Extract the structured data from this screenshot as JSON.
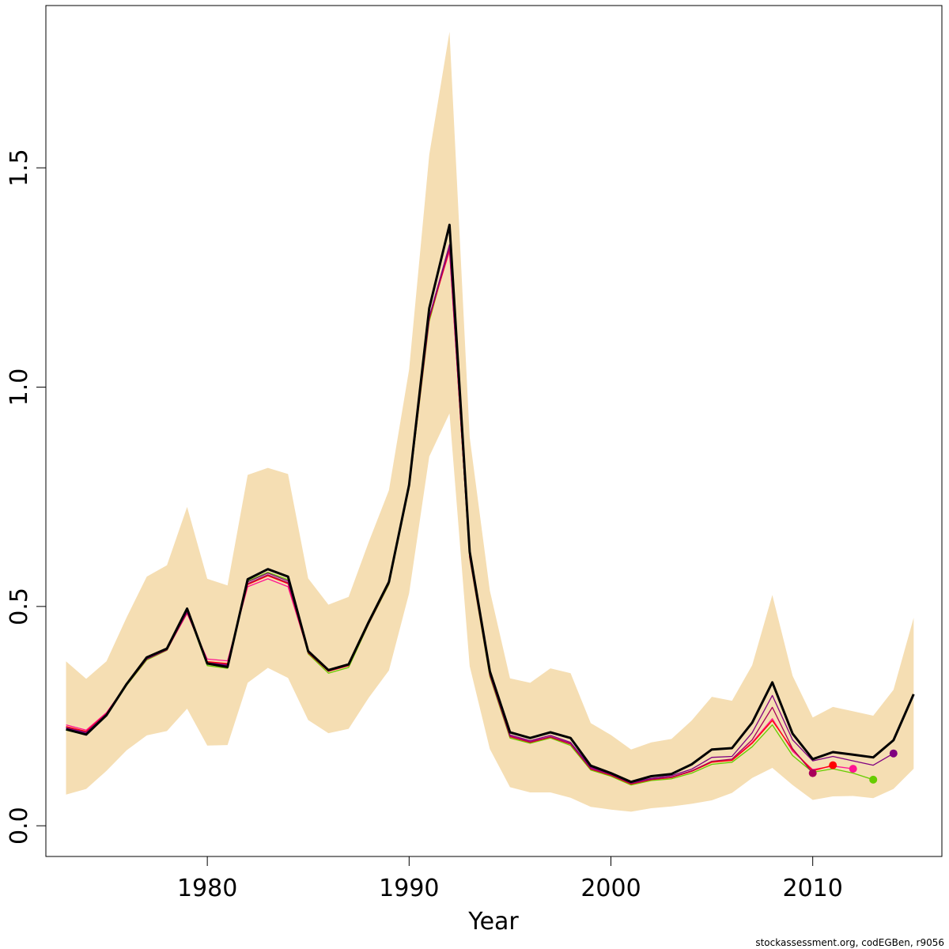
{
  "chart_data": {
    "type": "line",
    "xlabel": "Year",
    "ylabel": "",
    "xlim": [
      1972,
      2016.4
    ],
    "ylim": [
      -0.07,
      1.87
    ],
    "x_ticks": [
      1980,
      1990,
      2000,
      2010
    ],
    "x_tick_labels": [
      "1980",
      "1990",
      "2000",
      "2010"
    ],
    "y_ticks": [
      0.0,
      0.5,
      1.0,
      1.5
    ],
    "y_tick_labels": [
      "0.0",
      "0.5",
      "1.0",
      "1.5"
    ],
    "grid": false,
    "legend": "none",
    "band": {
      "color": "#f5deb3",
      "x": [
        1973,
        1974,
        1975,
        1976,
        1977,
        1978,
        1979,
        1980,
        1981,
        1982,
        1983,
        1984,
        1985,
        1986,
        1987,
        1988,
        1989,
        1990,
        1991,
        1992,
        1993,
        1994,
        1995,
        1996,
        1997,
        1998,
        1999,
        2000,
        2001,
        2002,
        2003,
        2004,
        2005,
        2006,
        2007,
        2008,
        2009,
        2010,
        2011,
        2012,
        2013,
        2014,
        2015
      ],
      "upper": [
        0.375,
        0.335,
        0.375,
        0.475,
        0.568,
        0.594,
        0.727,
        0.563,
        0.548,
        0.8,
        0.816,
        0.802,
        0.564,
        0.504,
        0.522,
        0.647,
        0.765,
        1.04,
        1.53,
        1.81,
        0.886,
        0.536,
        0.336,
        0.326,
        0.359,
        0.348,
        0.234,
        0.207,
        0.174,
        0.19,
        0.198,
        0.24,
        0.294,
        0.285,
        0.366,
        0.526,
        0.342,
        0.247,
        0.271,
        0.261,
        0.251,
        0.31,
        0.474
      ],
      "lower": [
        0.071,
        0.084,
        0.125,
        0.172,
        0.206,
        0.216,
        0.267,
        0.183,
        0.184,
        0.326,
        0.36,
        0.337,
        0.241,
        0.211,
        0.221,
        0.292,
        0.354,
        0.53,
        0.842,
        0.94,
        0.364,
        0.175,
        0.088,
        0.076,
        0.076,
        0.064,
        0.043,
        0.037,
        0.032,
        0.04,
        0.044,
        0.05,
        0.058,
        0.075,
        0.109,
        0.132,
        0.093,
        0.059,
        0.067,
        0.068,
        0.063,
        0.084,
        0.13
      ]
    },
    "x": [
      1973,
      1974,
      1975,
      1976,
      1977,
      1978,
      1979,
      1980,
      1981,
      1982,
      1983,
      1984,
      1985,
      1986,
      1987,
      1988,
      1989,
      1990,
      1991,
      1992,
      1993,
      1994,
      1995,
      1996,
      1997,
      1998,
      1999,
      2000,
      2001,
      2002,
      2003,
      2004,
      2005,
      2006,
      2007,
      2008,
      2009,
      2010,
      2011,
      2012,
      2013,
      2014,
      2015
    ],
    "series": [
      {
        "color": "#66cc00",
        "x": [
          1973,
          1974,
          1975,
          1976,
          1977,
          1978,
          1979,
          1980,
          1981,
          1982,
          1983,
          1984,
          1985,
          1986,
          1987,
          1988,
          1989,
          1990,
          1991,
          1992,
          1993,
          1994,
          1995,
          1996,
          1997,
          1998,
          1999,
          2000,
          2001,
          2002,
          2003,
          2004,
          2005,
          2006,
          2007,
          2008,
          2009,
          2010,
          2011,
          2012,
          2013
        ],
        "values": [
          0.218,
          0.207,
          0.25,
          0.32,
          0.378,
          0.4,
          0.49,
          0.365,
          0.359,
          0.558,
          0.578,
          0.561,
          0.392,
          0.348,
          0.361,
          0.46,
          0.55,
          0.77,
          1.15,
          1.32,
          0.61,
          0.34,
          0.2,
          0.188,
          0.2,
          0.183,
          0.127,
          0.113,
          0.093,
          0.103,
          0.107,
          0.12,
          0.14,
          0.145,
          0.18,
          0.23,
          0.16,
          0.122,
          0.13,
          0.12,
          0.105
        ],
        "end_marker": true
      },
      {
        "color": "#ff1493",
        "x": [
          1973,
          1974,
          1975,
          1976,
          1977,
          1978,
          1979,
          1980,
          1981,
          1982,
          1983,
          1984,
          1985,
          1986,
          1987,
          1988,
          1989,
          1990,
          1991,
          1992,
          1993,
          1994,
          1995,
          1996,
          1997,
          1998,
          1999,
          2000,
          2001,
          2002,
          2003,
          2004,
          2005,
          2006,
          2007,
          2008,
          2009,
          2010,
          2011,
          2012
        ],
        "values": [
          0.23,
          0.218,
          0.258,
          0.322,
          0.381,
          0.402,
          0.484,
          0.38,
          0.376,
          0.545,
          0.563,
          0.545,
          0.396,
          0.355,
          0.368,
          0.462,
          0.553,
          0.772,
          1.16,
          1.31,
          0.614,
          0.345,
          0.205,
          0.192,
          0.203,
          0.188,
          0.131,
          0.116,
          0.096,
          0.106,
          0.111,
          0.125,
          0.146,
          0.15,
          0.19,
          0.244,
          0.17,
          0.128,
          0.136,
          0.13
        ],
        "end_marker": true
      },
      {
        "color": "#ff0000",
        "x": [
          1973,
          1974,
          1975,
          1976,
          1977,
          1978,
          1979,
          1980,
          1981,
          1982,
          1983,
          1984,
          1985,
          1986,
          1987,
          1988,
          1989,
          1990,
          1991,
          1992,
          1993,
          1994,
          1995,
          1996,
          1997,
          1998,
          1999,
          2000,
          2001,
          2002,
          2003,
          2004,
          2005,
          2006,
          2007,
          2008,
          2009,
          2010,
          2011
        ],
        "values": [
          0.226,
          0.215,
          0.256,
          0.321,
          0.38,
          0.401,
          0.486,
          0.374,
          0.37,
          0.55,
          0.57,
          0.552,
          0.394,
          0.352,
          0.365,
          0.461,
          0.552,
          0.771,
          1.155,
          1.315,
          0.612,
          0.343,
          0.203,
          0.19,
          0.202,
          0.186,
          0.129,
          0.115,
          0.095,
          0.105,
          0.11,
          0.124,
          0.145,
          0.149,
          0.188,
          0.24,
          0.174,
          0.125,
          0.138
        ],
        "end_marker": true
      },
      {
        "color": "#a8005a",
        "x": [
          1973,
          1974,
          1975,
          1976,
          1977,
          1978,
          1979,
          1980,
          1981,
          1982,
          1983,
          1984,
          1985,
          1986,
          1987,
          1988,
          1989,
          1990,
          1991,
          1992,
          1993,
          1994,
          1995,
          1996,
          1997,
          1998,
          1999,
          2000,
          2001,
          2002,
          2003,
          2004,
          2005,
          2006,
          2007,
          2008,
          2009,
          2010
        ],
        "values": [
          0.224,
          0.213,
          0.255,
          0.321,
          0.38,
          0.401,
          0.487,
          0.372,
          0.368,
          0.552,
          0.572,
          0.554,
          0.395,
          0.353,
          0.366,
          0.461,
          0.552,
          0.772,
          1.158,
          1.318,
          0.613,
          0.344,
          0.204,
          0.191,
          0.203,
          0.187,
          0.13,
          0.116,
          0.096,
          0.106,
          0.111,
          0.125,
          0.147,
          0.152,
          0.196,
          0.27,
          0.176,
          0.12
        ],
        "end_marker": true
      },
      {
        "color": "#800080",
        "x": [
          1973,
          1974,
          1975,
          1976,
          1977,
          1978,
          1979,
          1980,
          1981,
          1982,
          1983,
          1984,
          1985,
          1986,
          1987,
          1988,
          1989,
          1990,
          1991,
          1992,
          1993,
          1994,
          1995,
          1996,
          1997,
          1998,
          1999,
          2000,
          2001,
          2002,
          2003,
          2004,
          2005,
          2006,
          2007,
          2008,
          2009,
          2010,
          2011,
          2012,
          2013,
          2014
        ],
        "values": [
          0.223,
          0.212,
          0.255,
          0.322,
          0.381,
          0.402,
          0.489,
          0.371,
          0.366,
          0.556,
          0.576,
          0.558,
          0.396,
          0.354,
          0.367,
          0.462,
          0.553,
          0.773,
          1.16,
          1.325,
          0.615,
          0.346,
          0.207,
          0.194,
          0.206,
          0.19,
          0.133,
          0.118,
          0.098,
          0.108,
          0.114,
          0.129,
          0.156,
          0.158,
          0.212,
          0.297,
          0.196,
          0.148,
          0.158,
          0.148,
          0.138,
          0.165
        ],
        "end_marker": true
      },
      {
        "color": "#000000",
        "bold": true,
        "x": [
          1973,
          1974,
          1975,
          1976,
          1977,
          1978,
          1979,
          1980,
          1981,
          1982,
          1983,
          1984,
          1985,
          1986,
          1987,
          1988,
          1989,
          1990,
          1991,
          1992,
          1993,
          1994,
          1995,
          1996,
          1997,
          1998,
          1999,
          2000,
          2001,
          2002,
          2003,
          2004,
          2005,
          2006,
          2007,
          2008,
          2009,
          2010,
          2011,
          2012,
          2013,
          2014,
          2015
        ],
        "values": [
          0.22,
          0.208,
          0.252,
          0.323,
          0.384,
          0.404,
          0.495,
          0.37,
          0.362,
          0.562,
          0.585,
          0.568,
          0.398,
          0.355,
          0.368,
          0.465,
          0.556,
          0.777,
          1.18,
          1.37,
          0.625,
          0.352,
          0.213,
          0.2,
          0.213,
          0.2,
          0.137,
          0.12,
          0.1,
          0.113,
          0.118,
          0.14,
          0.174,
          0.177,
          0.235,
          0.327,
          0.21,
          0.152,
          0.168,
          0.162,
          0.156,
          0.195,
          0.3
        ],
        "end_marker": false
      }
    ],
    "credit": "stockassessment.org, codEGBen, r9056"
  }
}
